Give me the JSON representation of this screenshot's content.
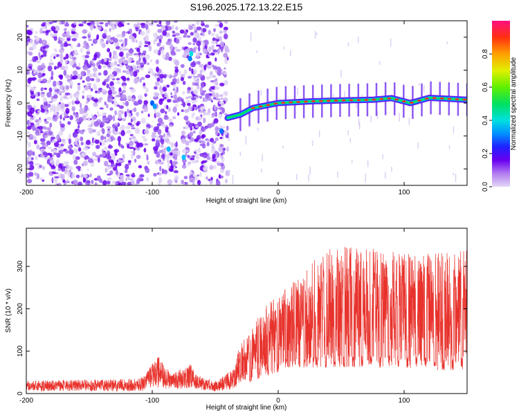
{
  "title": "S196.2025.172.13.22.E15",
  "chart_data": [
    {
      "type": "heatmap",
      "xlabel": "Height of straight line (km)",
      "ylabel": "Frequency (Hz)",
      "xlim": [
        -200,
        150
      ],
      "ylim": [
        -25,
        25
      ],
      "xticks": [
        -200,
        -100,
        0,
        100
      ],
      "yticks": [
        -20,
        -10,
        0,
        10,
        20
      ],
      "colorbar": {
        "label": "Normalized spectral amplitude",
        "range": [
          0,
          1
        ],
        "ticks": [
          0.0,
          0.2,
          0.4,
          0.6,
          0.8
        ],
        "tick_labels": [
          "0.0",
          "0.2",
          "0.4",
          "0.6",
          "0.8"
        ]
      },
      "signal_track": {
        "x": [
          -40,
          -30,
          -20,
          0,
          25,
          50,
          75,
          90,
          105,
          120,
          150
        ],
        "y": [
          -4.5,
          -3.5,
          -1.5,
          0,
          0.5,
          0.8,
          1.0,
          1.5,
          0,
          1.6,
          1.0
        ]
      },
      "noise_region_x": [
        -200,
        -40
      ],
      "grid": false
    },
    {
      "type": "line",
      "xlabel": "Height of straight line (km)",
      "ylabel": "SNR (10 * v/v)",
      "xlim": [
        -200,
        150
      ],
      "ylim": [
        0,
        390
      ],
      "xticks": [
        -200,
        -100,
        0,
        100
      ],
      "yticks": [
        0,
        100,
        200,
        300
      ],
      "color": "#e8322c",
      "envelope": {
        "x": [
          -200,
          -110,
          -100,
          -95,
          -85,
          -70,
          -65,
          -50,
          -35,
          -30,
          -20,
          -10,
          0,
          10,
          20,
          30,
          40,
          60,
          80,
          100,
          120,
          150
        ],
        "upper": [
          30,
          35,
          70,
          90,
          45,
          70,
          45,
          30,
          60,
          120,
          160,
          210,
          230,
          260,
          280,
          320,
          340,
          350,
          340,
          330,
          330,
          340
        ],
        "lower": [
          5,
          5,
          10,
          12,
          10,
          12,
          8,
          5,
          10,
          20,
          30,
          40,
          50,
          60,
          60,
          60,
          60,
          60,
          60,
          60,
          55,
          55
        ]
      },
      "grid": false
    }
  ]
}
